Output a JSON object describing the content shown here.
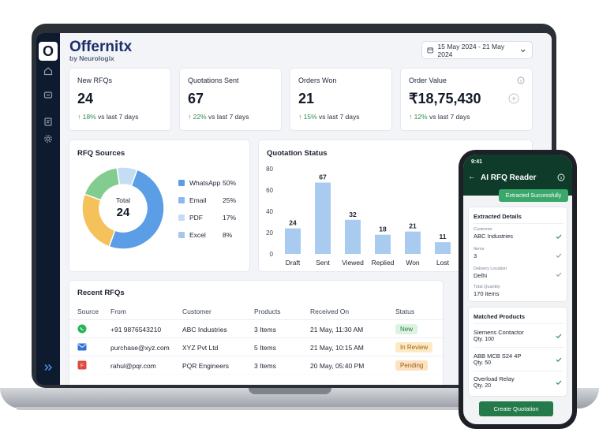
{
  "app": {
    "brand": "Offernitx",
    "brand_sub": "by Neurologix",
    "logo_letter": "O",
    "date_range": "15 May 2024 - 21 May 2024"
  },
  "sidebar": {
    "icons": [
      "home-icon",
      "message-icon",
      "clipboard-icon",
      "gear-icon"
    ],
    "collapse_icon": "double-chevron-right-icon"
  },
  "kpis": [
    {
      "title": "New RFQs",
      "value": "24",
      "change": "18%",
      "suffix": "vs last 7 days"
    },
    {
      "title": "Quotations Sent",
      "value": "67",
      "change": "22%",
      "suffix": "vs last 7 days"
    },
    {
      "title": "Orders Won",
      "value": "21",
      "change": "15%",
      "suffix": "vs last 7 days"
    },
    {
      "title": "Order Value",
      "value": "₹18,75,430",
      "change": "12%",
      "suffix": "vs last 7 days"
    }
  ],
  "rfq_sources": {
    "title": "RFQ Sources",
    "center_label": "Total",
    "center_value": "24",
    "items": [
      {
        "label": "WhatsApp",
        "pct": "50%",
        "value": 50,
        "color": "#5b9ee6"
      },
      {
        "label": "Email",
        "pct": "25%",
        "value": 25,
        "color": "#f5c15a"
      },
      {
        "label": "PDF",
        "pct": "17%",
        "value": 17,
        "color": "#82cc8f"
      },
      {
        "label": "Excel",
        "pct": "8%",
        "value": 8,
        "color": "#c5dcf5"
      }
    ]
  },
  "chart_data": {
    "type": "bar",
    "title": "Quotation Status",
    "categories": [
      "Draft",
      "Sent",
      "Viewed",
      "Replied",
      "Won",
      "Lost"
    ],
    "values": [
      24,
      67,
      32,
      18,
      21,
      11
    ],
    "ylim": [
      0,
      80
    ],
    "yticks": [
      "0",
      "20",
      "40",
      "60",
      "80"
    ],
    "grid": false,
    "color": "#a9cbf0"
  },
  "recent": {
    "title": "Recent RFQs",
    "columns": [
      "Source",
      "From",
      "Customer",
      "Products",
      "Received On",
      "Status"
    ],
    "rows": [
      {
        "source_icon": "whatsapp-icon",
        "from": "+91 9876543210",
        "customer": "ABC Industries",
        "products": "3 Items",
        "received": "21 May, 11:30 AM",
        "status": "New",
        "status_bg": "#dcf3e1",
        "status_fg": "#2d7a45"
      },
      {
        "source_icon": "email-icon",
        "from": "purchase@xyz.com",
        "customer": "XYZ Pvt Ltd",
        "products": "5 Items",
        "received": "21 May, 10:15 AM",
        "status": "In Review",
        "status_bg": "#fde9c4",
        "status_fg": "#9a6413"
      },
      {
        "source_icon": "pdf-icon",
        "from": "rahul@pqr.com",
        "customer": "PQR Engineers",
        "products": "3 Items",
        "received": "20 May, 05:40 PM",
        "status": "Pending",
        "status_bg": "#fde2c0",
        "status_fg": "#9a5c13"
      }
    ]
  },
  "phone": {
    "time": "9:41",
    "title": "AI RFQ Reader",
    "badge": "Extracted Successfully",
    "details_title": "Extracted Details",
    "fields": [
      {
        "label": "Customer",
        "value": "ABC Industries"
      },
      {
        "label": "Items",
        "value": "3"
      },
      {
        "label": "Delivery Location",
        "value": "Delhi"
      },
      {
        "label": "Total Quantity",
        "value": "170 items"
      }
    ],
    "products_title": "Matched Products",
    "products": [
      {
        "name": "Siemens Contactor",
        "qty": "Qty. 100"
      },
      {
        "name": "ABB MCB S24 4P",
        "qty": "Qty. 50"
      },
      {
        "name": "Overload Relay",
        "qty": "Qty. 20"
      }
    ],
    "button": "Create Quotation"
  }
}
